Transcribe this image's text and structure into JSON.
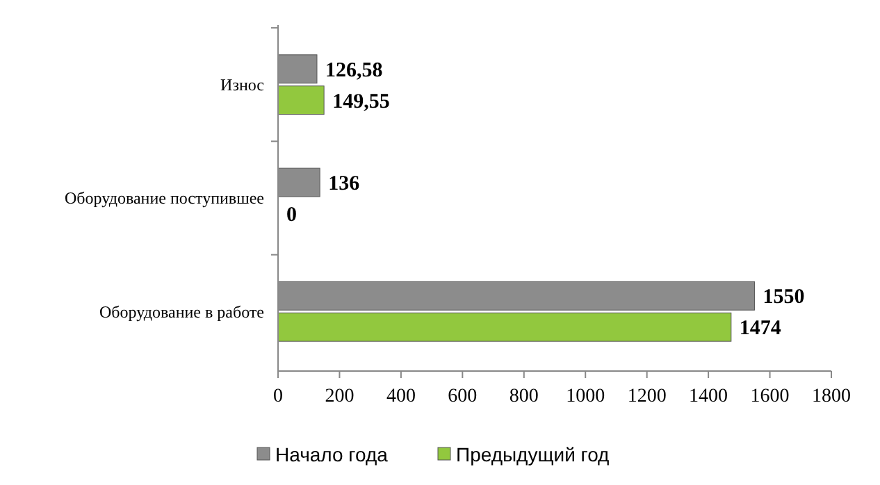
{
  "chart_data": {
    "type": "bar",
    "orientation": "horizontal",
    "categories": [
      "Износ",
      "Оборудование поступившее",
      "Оборудование в работе"
    ],
    "series": [
      {
        "name": "Начало года",
        "color": "#8c8c8c",
        "values": [
          126.58,
          136,
          1550
        ],
        "value_labels": [
          "126,58",
          "136",
          "1550"
        ]
      },
      {
        "name": "Предыдущий год",
        "color": "#92c83e",
        "values": [
          149.55,
          0,
          1474
        ],
        "value_labels": [
          "149,55",
          "0",
          "1474"
        ]
      }
    ],
    "xlim": [
      0,
      1800
    ],
    "xticks": [
      0,
      200,
      400,
      600,
      800,
      1000,
      1200,
      1400,
      1600,
      1800
    ],
    "grid": false,
    "legend": "bottom"
  }
}
